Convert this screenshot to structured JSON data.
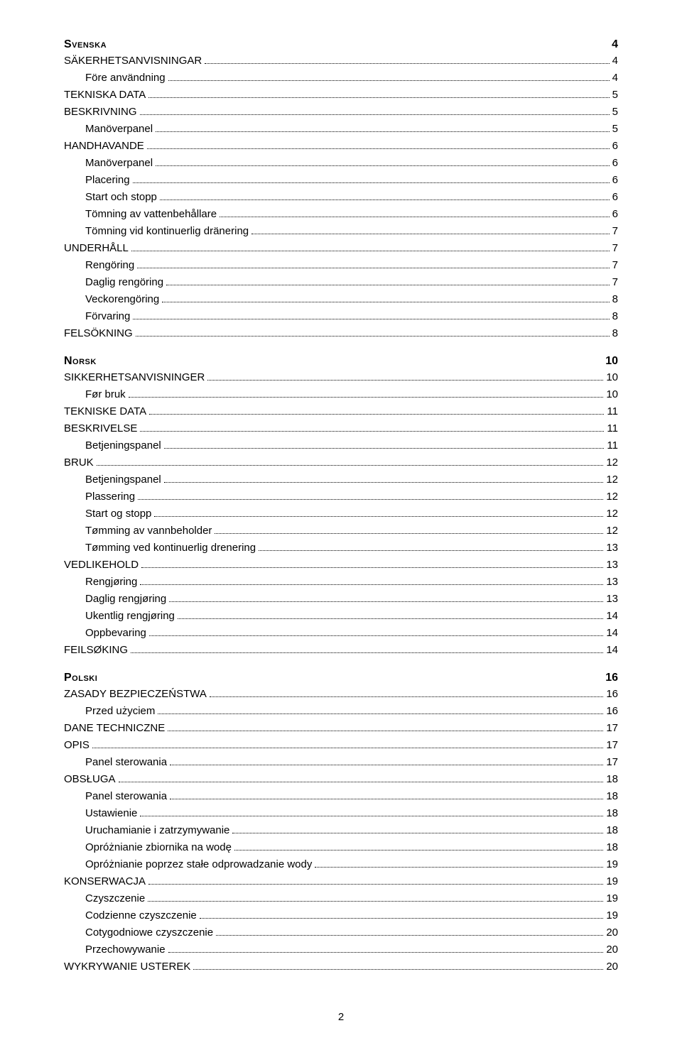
{
  "page_number": "2",
  "sections": [
    {
      "heading": "Svenska",
      "heading_page": "4",
      "entries": [
        {
          "label": "SÄKERHETSANVISNINGAR",
          "page": "4",
          "level": 0
        },
        {
          "label": "Före användning",
          "page": "4",
          "level": 1
        },
        {
          "label": "TEKNISKA DATA",
          "page": "5",
          "level": 0
        },
        {
          "label": "BESKRIVNING",
          "page": "5",
          "level": 0
        },
        {
          "label": "Manöverpanel",
          "page": "5",
          "level": 1
        },
        {
          "label": "HANDHAVANDE",
          "page": "6",
          "level": 0
        },
        {
          "label": "Manöverpanel",
          "page": "6",
          "level": 1
        },
        {
          "label": "Placering",
          "page": "6",
          "level": 1
        },
        {
          "label": "Start och stopp",
          "page": "6",
          "level": 1
        },
        {
          "label": "Tömning av vattenbehållare",
          "page": "6",
          "level": 1
        },
        {
          "label": "Tömning vid kontinuerlig dränering",
          "page": "7",
          "level": 1
        },
        {
          "label": "UNDERHÅLL",
          "page": "7",
          "level": 0
        },
        {
          "label": "Rengöring",
          "page": "7",
          "level": 1
        },
        {
          "label": "Daglig rengöring",
          "page": "7",
          "level": 1
        },
        {
          "label": "Veckorengöring",
          "page": "8",
          "level": 1
        },
        {
          "label": "Förvaring",
          "page": "8",
          "level": 1
        },
        {
          "label": "FELSÖKNING",
          "page": "8",
          "level": 0
        }
      ]
    },
    {
      "heading": "Norsk",
      "heading_page": "10",
      "entries": [
        {
          "label": "SIKKERHETSANVISNINGER",
          "page": "10",
          "level": 0
        },
        {
          "label": "Før bruk",
          "page": "10",
          "level": 1
        },
        {
          "label": "TEKNISKE DATA",
          "page": "11",
          "level": 0
        },
        {
          "label": "BESKRIVELSE",
          "page": "11",
          "level": 0
        },
        {
          "label": "Betjeningspanel",
          "page": "11",
          "level": 1
        },
        {
          "label": "BRUK",
          "page": "12",
          "level": 0
        },
        {
          "label": "Betjeningspanel",
          "page": "12",
          "level": 1
        },
        {
          "label": "Plassering",
          "page": "12",
          "level": 1
        },
        {
          "label": "Start og stopp",
          "page": "12",
          "level": 1
        },
        {
          "label": "Tømming av vannbeholder",
          "page": "12",
          "level": 1
        },
        {
          "label": "Tømming ved kontinuerlig drenering",
          "page": "13",
          "level": 1
        },
        {
          "label": "VEDLIKEHOLD",
          "page": "13",
          "level": 0
        },
        {
          "label": "Rengjøring",
          "page": "13",
          "level": 1
        },
        {
          "label": "Daglig rengjøring",
          "page": "13",
          "level": 1
        },
        {
          "label": "Ukentlig rengjøring",
          "page": "14",
          "level": 1
        },
        {
          "label": "Oppbevaring",
          "page": "14",
          "level": 1
        },
        {
          "label": "FEILSØKING",
          "page": "14",
          "level": 0
        }
      ]
    },
    {
      "heading": "Polski",
      "heading_page": "16",
      "entries": [
        {
          "label": "ZASADY BEZPIECZEŃSTWA",
          "page": "16",
          "level": 0
        },
        {
          "label": "Przed użyciem",
          "page": "16",
          "level": 1
        },
        {
          "label": "DANE TECHNICZNE",
          "page": "17",
          "level": 0
        },
        {
          "label": "OPIS",
          "page": "17",
          "level": 0
        },
        {
          "label": "Panel sterowania",
          "page": "17",
          "level": 1
        },
        {
          "label": "OBSŁUGA",
          "page": "18",
          "level": 0
        },
        {
          "label": "Panel sterowania",
          "page": "18",
          "level": 1
        },
        {
          "label": "Ustawienie",
          "page": "18",
          "level": 1
        },
        {
          "label": "Uruchamianie i zatrzymywanie",
          "page": "18",
          "level": 1
        },
        {
          "label": "Opróżnianie zbiornika na wodę",
          "page": "18",
          "level": 1
        },
        {
          "label": "Opróżnianie poprzez stałe odprowadzanie wody",
          "page": "19",
          "level": 1
        },
        {
          "label": "KONSERWACJA",
          "page": "19",
          "level": 0
        },
        {
          "label": "Czyszczenie",
          "page": "19",
          "level": 1
        },
        {
          "label": "Codzienne czyszczenie",
          "page": "19",
          "level": 1
        },
        {
          "label": "Cotygodniowe czyszczenie",
          "page": "20",
          "level": 1
        },
        {
          "label": "Przechowywanie",
          "page": "20",
          "level": 1
        },
        {
          "label": "WYKRYWANIE USTEREK",
          "page": "20",
          "level": 0
        }
      ]
    }
  ]
}
